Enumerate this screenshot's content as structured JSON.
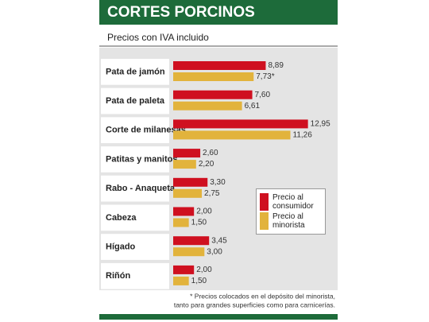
{
  "chart_data": {
    "type": "bar",
    "title": "CORTES PORCINOS",
    "subtitle": "Precios con IVA incluido",
    "categories": [
      "Pata de jamón",
      "Pata de paleta",
      "Corte de milanesas",
      "Patitas y manitos",
      "Rabo - Anaqueta",
      "Cabeza",
      "Hígado",
      "Riñón"
    ],
    "series": [
      {
        "name": "Precio al consumidor",
        "color": "#cf1020",
        "values": [
          8.89,
          7.6,
          12.95,
          2.6,
          3.3,
          2.0,
          3.45,
          2.0
        ],
        "value_labels": [
          "8,89",
          "7,60",
          "12,95",
          "2,60",
          "3,30",
          "2,00",
          "3,45",
          "2,00"
        ]
      },
      {
        "name": "Precio al minorista",
        "color": "#e2b33c",
        "values": [
          7.73,
          6.61,
          11.26,
          2.2,
          2.75,
          1.5,
          3.0,
          1.5
        ],
        "value_labels": [
          "7,73*",
          "6,61",
          "11,26",
          "2,20",
          "2,75",
          "1,50",
          "3,00",
          "1,50"
        ]
      }
    ],
    "footnote": [
      "* Precios colocados en el depósito del minorista,",
      "tanto para grandes superficies como para carnicerías."
    ]
  }
}
